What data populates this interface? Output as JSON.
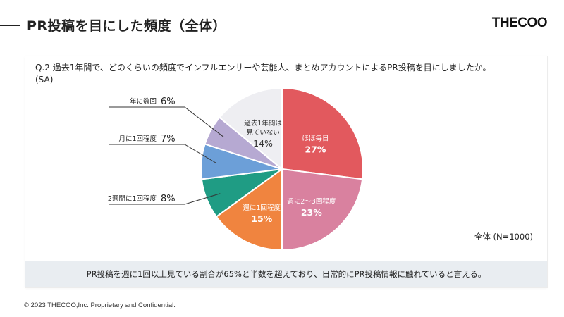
{
  "page": {
    "title": "PR投稿を目にした頻度（全体）",
    "logo": "THECOO",
    "copyright": "© 2023 THECOO,Inc. Proprietary and Confidential."
  },
  "question": {
    "line1": "Q.2 過去1年間で、どのくらいの頻度でインフルエンサーや芸能人、まとめアカウントによるPR投稿を目にしましたか。",
    "line2": "(SA)"
  },
  "base": "全体 (N=1000)",
  "summary": "PR投稿を週に1回以上見ている割合が65%と半数を超えており、日常的にPR投稿情報に触れていると言える。",
  "colors": {
    "slice_0": "#e2595e",
    "slice_1": "#d9819f",
    "slice_2": "#f0843f",
    "slice_3": "#1f9c84",
    "slice_4": "#6c9fd8",
    "slice_5": "#b6a9d2",
    "slice_6": "#eeeef2"
  },
  "chart_data": {
    "type": "pie",
    "start": "12 o'clock, clockwise",
    "slices": [
      {
        "label": "ほぼ毎日",
        "value": 27,
        "value_label": "27%",
        "label_position": "inside"
      },
      {
        "label": "週に2～3回程度",
        "value": 23,
        "value_label": "23%",
        "label_position": "inside"
      },
      {
        "label": "週に1回程度",
        "value": 15,
        "value_label": "15%",
        "label_position": "inside"
      },
      {
        "label": "2週間に1回程度",
        "value": 8,
        "value_label": "8%",
        "label_position": "outside-left"
      },
      {
        "label": "月に1回程度",
        "value": 7,
        "value_label": "7%",
        "label_position": "outside-left"
      },
      {
        "label": "年に数回",
        "value": 6,
        "value_label": "6%",
        "label_position": "outside-left"
      },
      {
        "label": "過去1年間は見ていない",
        "label_lines": [
          "過去1年間は",
          "見ていない"
        ],
        "value": 14,
        "value_label": "14%",
        "label_position": "inside"
      }
    ]
  }
}
